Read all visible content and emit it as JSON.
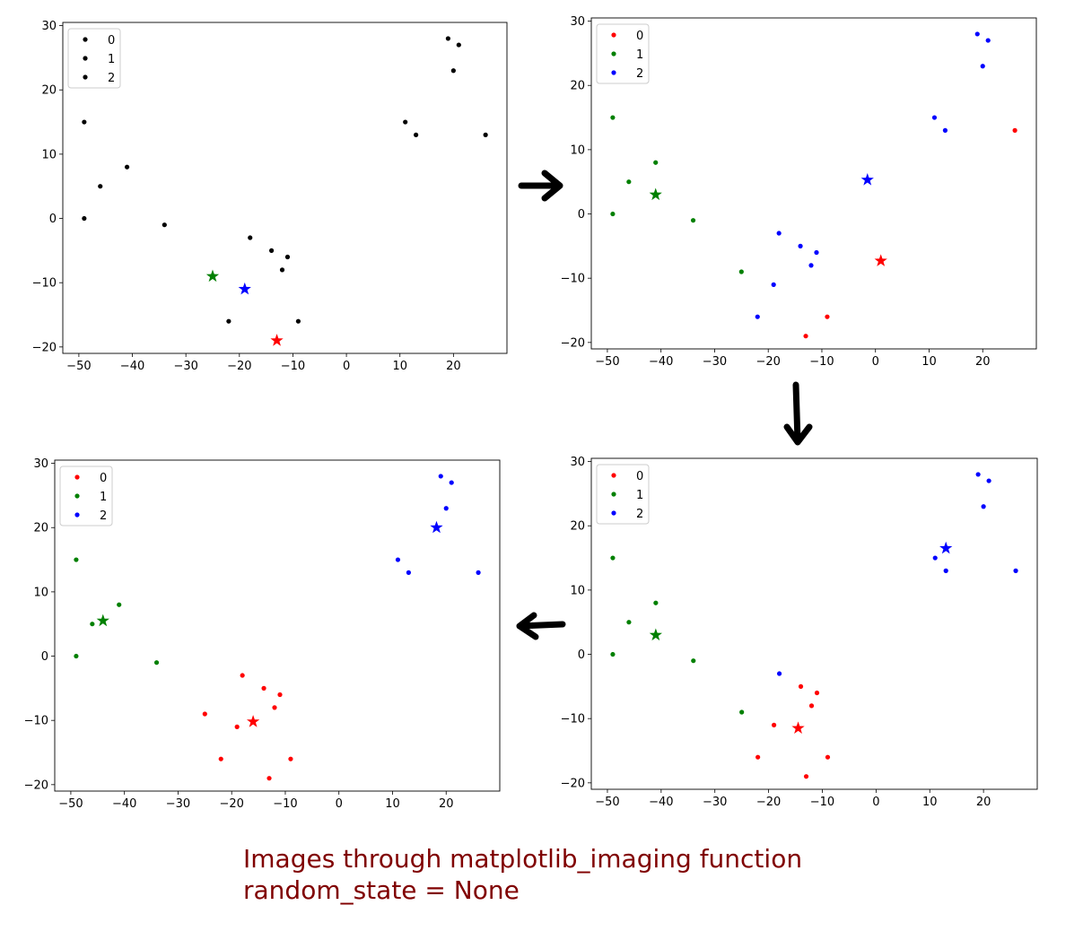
{
  "caption": {
    "line1": "Images through matplotlib_imaging function",
    "line2": "random_state = None"
  },
  "colors": {
    "0": "#ff0000",
    "1": "#008000",
    "2": "#0000ff",
    "uncolored": "#000000",
    "arrow": "#000000"
  },
  "legend_placement": "upper-left",
  "chart_data": [
    {
      "type": "scatter",
      "panel": "top-left",
      "xlim": [
        -53,
        30
      ],
      "ylim": [
        -21,
        30.5
      ],
      "xticks": [
        -50,
        -40,
        -30,
        -20,
        -10,
        0,
        10,
        20
      ],
      "yticks": [
        -20,
        -10,
        0,
        10,
        20,
        30
      ],
      "legend": [
        "0",
        "1",
        "2"
      ],
      "legend_colors": [
        "uncolored",
        "uncolored",
        "uncolored"
      ],
      "points": [
        {
          "x": -49,
          "y": 15,
          "c": "uncolored"
        },
        {
          "x": -49,
          "y": 0,
          "c": "uncolored"
        },
        {
          "x": -46,
          "y": 5,
          "c": "uncolored"
        },
        {
          "x": -41,
          "y": 8,
          "c": "uncolored"
        },
        {
          "x": -34,
          "y": -1,
          "c": "uncolored"
        },
        {
          "x": -22,
          "y": -16,
          "c": "uncolored"
        },
        {
          "x": -18,
          "y": -3,
          "c": "uncolored"
        },
        {
          "x": -14,
          "y": -5,
          "c": "uncolored"
        },
        {
          "x": -12,
          "y": -8,
          "c": "uncolored"
        },
        {
          "x": -11,
          "y": -6,
          "c": "uncolored"
        },
        {
          "x": -9,
          "y": -16,
          "c": "uncolored"
        },
        {
          "x": 11,
          "y": 15,
          "c": "uncolored"
        },
        {
          "x": 13,
          "y": 13,
          "c": "uncolored"
        },
        {
          "x": 19,
          "y": 28,
          "c": "uncolored"
        },
        {
          "x": 20,
          "y": 23,
          "c": "uncolored"
        },
        {
          "x": 21,
          "y": 27,
          "c": "uncolored"
        },
        {
          "x": 26,
          "y": 13,
          "c": "uncolored"
        }
      ],
      "centroids": [
        {
          "x": -25,
          "y": -9,
          "c": "1"
        },
        {
          "x": -19,
          "y": -11,
          "c": "2"
        },
        {
          "x": -13,
          "y": -19,
          "c": "0"
        }
      ]
    },
    {
      "type": "scatter",
      "panel": "top-right",
      "xlim": [
        -53,
        30
      ],
      "ylim": [
        -21,
        30.5
      ],
      "xticks": [
        -50,
        -40,
        -30,
        -20,
        -10,
        0,
        10,
        20
      ],
      "yticks": [
        -20,
        -10,
        0,
        10,
        20,
        30
      ],
      "legend": [
        "0",
        "1",
        "2"
      ],
      "legend_colors": [
        "0",
        "1",
        "2"
      ],
      "points": [
        {
          "x": -49,
          "y": 15,
          "c": "1"
        },
        {
          "x": -49,
          "y": 0,
          "c": "1"
        },
        {
          "x": -46,
          "y": 5,
          "c": "1"
        },
        {
          "x": -41,
          "y": 8,
          "c": "1"
        },
        {
          "x": -34,
          "y": -1,
          "c": "1"
        },
        {
          "x": -25,
          "y": -9,
          "c": "1"
        },
        {
          "x": -22,
          "y": -16,
          "c": "2"
        },
        {
          "x": -19,
          "y": -11,
          "c": "2"
        },
        {
          "x": -18,
          "y": -3,
          "c": "2"
        },
        {
          "x": -14,
          "y": -5,
          "c": "2"
        },
        {
          "x": -12,
          "y": -8,
          "c": "2"
        },
        {
          "x": -11,
          "y": -6,
          "c": "2"
        },
        {
          "x": -13,
          "y": -19,
          "c": "0"
        },
        {
          "x": -9,
          "y": -16,
          "c": "0"
        },
        {
          "x": 11,
          "y": 15,
          "c": "2"
        },
        {
          "x": 13,
          "y": 13,
          "c": "2"
        },
        {
          "x": 19,
          "y": 28,
          "c": "2"
        },
        {
          "x": 20,
          "y": 23,
          "c": "2"
        },
        {
          "x": 21,
          "y": 27,
          "c": "2"
        },
        {
          "x": 26,
          "y": 13,
          "c": "0"
        }
      ],
      "centroids": [
        {
          "x": -41,
          "y": 3,
          "c": "1"
        },
        {
          "x": -1.5,
          "y": 5.3,
          "c": "2"
        },
        {
          "x": 1,
          "y": -7.3,
          "c": "0"
        }
      ]
    },
    {
      "type": "scatter",
      "panel": "bottom-right",
      "xlim": [
        -53,
        30
      ],
      "ylim": [
        -21,
        30.5
      ],
      "xticks": [
        -50,
        -40,
        -30,
        -20,
        -10,
        0,
        10,
        20
      ],
      "yticks": [
        -20,
        -10,
        0,
        10,
        20,
        30
      ],
      "legend": [
        "0",
        "1",
        "2"
      ],
      "legend_colors": [
        "0",
        "1",
        "2"
      ],
      "points": [
        {
          "x": -49,
          "y": 15,
          "c": "1"
        },
        {
          "x": -49,
          "y": 0,
          "c": "1"
        },
        {
          "x": -46,
          "y": 5,
          "c": "1"
        },
        {
          "x": -41,
          "y": 8,
          "c": "1"
        },
        {
          "x": -34,
          "y": -1,
          "c": "1"
        },
        {
          "x": -25,
          "y": -9,
          "c": "1"
        },
        {
          "x": -22,
          "y": -16,
          "c": "0"
        },
        {
          "x": -19,
          "y": -11,
          "c": "0"
        },
        {
          "x": -18,
          "y": -3,
          "c": "2"
        },
        {
          "x": -14,
          "y": -5,
          "c": "0"
        },
        {
          "x": -12,
          "y": -8,
          "c": "0"
        },
        {
          "x": -11,
          "y": -6,
          "c": "0"
        },
        {
          "x": -13,
          "y": -19,
          "c": "0"
        },
        {
          "x": -9,
          "y": -16,
          "c": "0"
        },
        {
          "x": 11,
          "y": 15,
          "c": "2"
        },
        {
          "x": 13,
          "y": 13,
          "c": "2"
        },
        {
          "x": 19,
          "y": 28,
          "c": "2"
        },
        {
          "x": 20,
          "y": 23,
          "c": "2"
        },
        {
          "x": 21,
          "y": 27,
          "c": "2"
        },
        {
          "x": 26,
          "y": 13,
          "c": "2"
        }
      ],
      "centroids": [
        {
          "x": -41,
          "y": 3,
          "c": "1"
        },
        {
          "x": 13,
          "y": 16.5,
          "c": "2"
        },
        {
          "x": -14.5,
          "y": -11.5,
          "c": "0"
        }
      ]
    },
    {
      "type": "scatter",
      "panel": "bottom-left",
      "xlim": [
        -53,
        30
      ],
      "ylim": [
        -21,
        30.5
      ],
      "xticks": [
        -50,
        -40,
        -30,
        -20,
        -10,
        0,
        10,
        20
      ],
      "yticks": [
        -20,
        -10,
        0,
        10,
        20,
        30
      ],
      "legend": [
        "0",
        "1",
        "2"
      ],
      "legend_colors": [
        "0",
        "1",
        "2"
      ],
      "points": [
        {
          "x": -49,
          "y": 15,
          "c": "1"
        },
        {
          "x": -49,
          "y": 0,
          "c": "1"
        },
        {
          "x": -46,
          "y": 5,
          "c": "1"
        },
        {
          "x": -41,
          "y": 8,
          "c": "1"
        },
        {
          "x": -34,
          "y": -1,
          "c": "1"
        },
        {
          "x": -25,
          "y": -9,
          "c": "0"
        },
        {
          "x": -22,
          "y": -16,
          "c": "0"
        },
        {
          "x": -19,
          "y": -11,
          "c": "0"
        },
        {
          "x": -18,
          "y": -3,
          "c": "0"
        },
        {
          "x": -14,
          "y": -5,
          "c": "0"
        },
        {
          "x": -12,
          "y": -8,
          "c": "0"
        },
        {
          "x": -11,
          "y": -6,
          "c": "0"
        },
        {
          "x": -13,
          "y": -19,
          "c": "0"
        },
        {
          "x": -9,
          "y": -16,
          "c": "0"
        },
        {
          "x": 11,
          "y": 15,
          "c": "2"
        },
        {
          "x": 13,
          "y": 13,
          "c": "2"
        },
        {
          "x": 19,
          "y": 28,
          "c": "2"
        },
        {
          "x": 20,
          "y": 23,
          "c": "2"
        },
        {
          "x": 21,
          "y": 27,
          "c": "2"
        },
        {
          "x": 26,
          "y": 13,
          "c": "2"
        }
      ],
      "centroids": [
        {
          "x": -44,
          "y": 5.5,
          "c": "1"
        },
        {
          "x": 18.2,
          "y": 20,
          "c": "2"
        },
        {
          "x": -16,
          "y": -10.2,
          "c": "0"
        }
      ]
    }
  ]
}
